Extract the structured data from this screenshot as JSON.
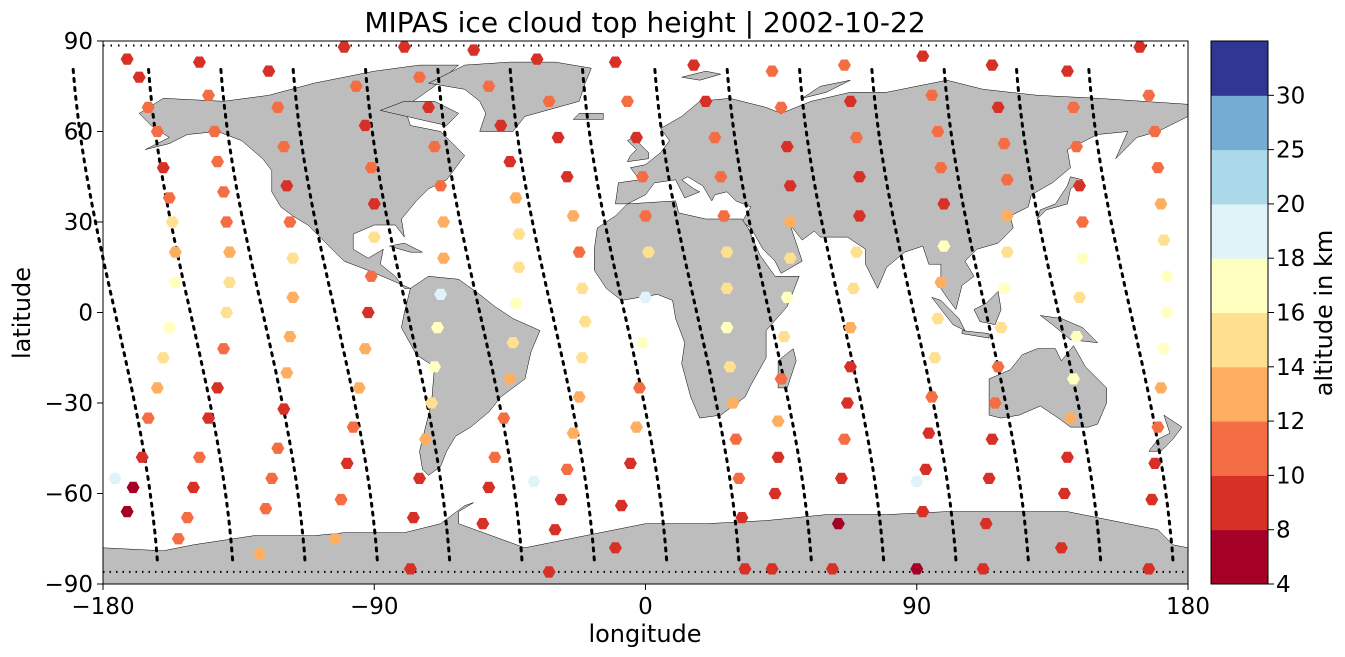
{
  "chart_data": {
    "type": "scatter",
    "title": "MIPAS ice cloud top height | 2002-10-22",
    "xlabel": "longitude",
    "ylabel": "latitude",
    "xlim": [
      -180,
      180
    ],
    "ylim": [
      -90,
      90
    ],
    "xticks": [
      -180,
      -90,
      0,
      90,
      180
    ],
    "yticks": [
      -90,
      -60,
      -30,
      0,
      30,
      60,
      90
    ],
    "xtick_labels": [
      "−180",
      "−90",
      "0",
      "90",
      "180"
    ],
    "ytick_labels": [
      "−90",
      "−60",
      "−30",
      "0",
      "30",
      "60",
      "90"
    ],
    "background_map": "world coastlines, land in grey",
    "land_color": "#bdbdbd",
    "colorbar": {
      "label": "altitude in km",
      "placement": "right",
      "boundaries": [
        4,
        8,
        10,
        12,
        14,
        16,
        18,
        20,
        25,
        30
      ],
      "tick_labels": [
        "4",
        "8",
        "10",
        "12",
        "14",
        "16",
        "18",
        "20",
        "25",
        "30"
      ],
      "colors": [
        "#a50026",
        "#d73027",
        "#f46d43",
        "#fdae61",
        "#fee090",
        "#ffffbf",
        "#e0f3f8",
        "#abd9e9",
        "#74add1",
        "#313695"
      ]
    },
    "orbit_tracks": {
      "style": "black dotted",
      "longitudes_at_equator": [
        -176,
        -151,
        -127,
        -103,
        -79,
        -55,
        -31,
        -7,
        17,
        41,
        65,
        89,
        113,
        137,
        161
      ]
    },
    "points": [
      [
        -172,
        84,
        9
      ],
      [
        -168,
        78,
        9
      ],
      [
        -165,
        68,
        11
      ],
      [
        -162,
        60,
        10
      ],
      [
        -160,
        48,
        9
      ],
      [
        -158,
        38,
        11
      ],
      [
        -157,
        30,
        14
      ],
      [
        -156,
        20,
        13
      ],
      [
        -156,
        10,
        17
      ],
      [
        -158,
        -5,
        17
      ],
      [
        -160,
        -15,
        14
      ],
      [
        -162,
        -25,
        12
      ],
      [
        -165,
        -35,
        11
      ],
      [
        -167,
        -48,
        9
      ],
      [
        -170,
        -58,
        7
      ],
      [
        -172,
        -66,
        7
      ],
      [
        -176,
        -55,
        19
      ],
      [
        -148,
        83,
        9
      ],
      [
        -145,
        72,
        10
      ],
      [
        -143,
        60,
        11
      ],
      [
        -142,
        50,
        10
      ],
      [
        -140,
        40,
        11
      ],
      [
        -139,
        30,
        10
      ],
      [
        -138,
        20,
        13
      ],
      [
        -138,
        10,
        14
      ],
      [
        -139,
        0,
        14
      ],
      [
        -140,
        -12,
        10
      ],
      [
        -142,
        -25,
        9
      ],
      [
        -145,
        -35,
        9
      ],
      [
        -148,
        -48,
        10
      ],
      [
        -150,
        -58,
        8
      ],
      [
        -152,
        -68,
        11
      ],
      [
        -155,
        -75,
        11
      ],
      [
        -125,
        80,
        9
      ],
      [
        -122,
        68,
        10
      ],
      [
        -120,
        55,
        11
      ],
      [
        -119,
        42,
        9
      ],
      [
        -118,
        30,
        11
      ],
      [
        -117,
        18,
        14
      ],
      [
        -117,
        5,
        12
      ],
      [
        -118,
        -8,
        13
      ],
      [
        -119,
        -20,
        12
      ],
      [
        -120,
        -32,
        9
      ],
      [
        -122,
        -45,
        10
      ],
      [
        -124,
        -55,
        11
      ],
      [
        -126,
        -65,
        10
      ],
      [
        -128,
        -80,
        12
      ],
      [
        -100,
        88,
        9
      ],
      [
        -96,
        75,
        10
      ],
      [
        -93,
        62,
        9
      ],
      [
        -91,
        48,
        10
      ],
      [
        -90,
        36,
        9
      ],
      [
        -90,
        25,
        14
      ],
      [
        -91,
        12,
        11
      ],
      [
        -92,
        0,
        9
      ],
      [
        -93,
        -12,
        13
      ],
      [
        -95,
        -25,
        12
      ],
      [
        -97,
        -38,
        11
      ],
      [
        -99,
        -50,
        9
      ],
      [
        -101,
        -62,
        11
      ],
      [
        -103,
        -75,
        12
      ],
      [
        -80,
        88,
        9
      ],
      [
        -75,
        78,
        10
      ],
      [
        -72,
        68,
        9
      ],
      [
        -70,
        55,
        10
      ],
      [
        -68,
        42,
        11
      ],
      [
        -67,
        30,
        13
      ],
      [
        -67,
        18,
        12
      ],
      [
        -68,
        6,
        18
      ],
      [
        -69,
        -5,
        17
      ],
      [
        -70,
        -18,
        16
      ],
      [
        -71,
        -30,
        15
      ],
      [
        -73,
        -42,
        12
      ],
      [
        -75,
        -55,
        8
      ],
      [
        -77,
        -68,
        9
      ],
      [
        -78,
        -85,
        9
      ],
      [
        -57,
        87,
        9
      ],
      [
        -52,
        75,
        10
      ],
      [
        -48,
        62,
        9
      ],
      [
        -45,
        50,
        9
      ],
      [
        -43,
        38,
        12
      ],
      [
        -42,
        26,
        14
      ],
      [
        -42,
        15,
        15
      ],
      [
        -43,
        3,
        16
      ],
      [
        -44,
        -10,
        14
      ],
      [
        -45,
        -22,
        12
      ],
      [
        -47,
        -35,
        10
      ],
      [
        -50,
        -48,
        11
      ],
      [
        -52,
        -58,
        9
      ],
      [
        -54,
        -70,
        9
      ],
      [
        -36,
        84,
        9
      ],
      [
        -32,
        70,
        10
      ],
      [
        -29,
        58,
        9
      ],
      [
        -26,
        45,
        9
      ],
      [
        -24,
        32,
        12
      ],
      [
        -22,
        20,
        11
      ],
      [
        -21,
        8,
        14
      ],
      [
        -20,
        -3,
        14
      ],
      [
        -21,
        -15,
        15
      ],
      [
        -22,
        -28,
        13
      ],
      [
        -24,
        -40,
        12
      ],
      [
        -26,
        -52,
        11
      ],
      [
        -28,
        -62,
        9
      ],
      [
        -30,
        -72,
        9
      ],
      [
        -32,
        -86,
        9
      ],
      [
        -37,
        -56,
        19
      ],
      [
        -10,
        83,
        9
      ],
      [
        -6,
        70,
        10
      ],
      [
        -3,
        58,
        9
      ],
      [
        -1,
        45,
        10
      ],
      [
        0,
        32,
        11
      ],
      [
        1,
        20,
        15
      ],
      [
        0,
        5,
        18
      ],
      [
        -1,
        -10,
        16
      ],
      [
        -2,
        -25,
        11
      ],
      [
        -3,
        -38,
        12
      ],
      [
        -5,
        -50,
        9
      ],
      [
        -8,
        -64,
        8
      ],
      [
        -10,
        -78,
        8
      ],
      [
        16,
        82,
        9
      ],
      [
        20,
        70,
        9
      ],
      [
        23,
        58,
        10
      ],
      [
        25,
        45,
        10
      ],
      [
        26,
        32,
        11
      ],
      [
        27,
        20,
        14
      ],
      [
        27,
        8,
        15
      ],
      [
        27,
        -5,
        16
      ],
      [
        28,
        -18,
        14
      ],
      [
        29,
        -30,
        13
      ],
      [
        30,
        -42,
        10
      ],
      [
        31,
        -55,
        11
      ],
      [
        32,
        -68,
        9
      ],
      [
        33,
        -85,
        8
      ],
      [
        42,
        80,
        10
      ],
      [
        45,
        68,
        10
      ],
      [
        47,
        55,
        9
      ],
      [
        48,
        42,
        9
      ],
      [
        48,
        30,
        13
      ],
      [
        48,
        18,
        15
      ],
      [
        47,
        5,
        17
      ],
      [
        46,
        -8,
        14
      ],
      [
        45,
        -22,
        11
      ],
      [
        44,
        -36,
        12
      ],
      [
        44,
        -48,
        9
      ],
      [
        43,
        -60,
        9
      ],
      [
        42,
        -85,
        9
      ],
      [
        66,
        82,
        10
      ],
      [
        68,
        70,
        9
      ],
      [
        70,
        58,
        10
      ],
      [
        71,
        45,
        9
      ],
      [
        71,
        32,
        9
      ],
      [
        70,
        20,
        14
      ],
      [
        69,
        8,
        14
      ],
      [
        68,
        -5,
        13
      ],
      [
        68,
        -18,
        9
      ],
      [
        67,
        -30,
        9
      ],
      [
        66,
        -42,
        10
      ],
      [
        65,
        -55,
        8
      ],
      [
        64,
        -70,
        7
      ],
      [
        62,
        -85,
        8
      ],
      [
        92,
        85,
        9
      ],
      [
        95,
        72,
        10
      ],
      [
        97,
        60,
        11
      ],
      [
        98,
        48,
        10
      ],
      [
        99,
        36,
        9
      ],
      [
        99,
        22,
        17
      ],
      [
        98,
        10,
        13
      ],
      [
        97,
        -2,
        14
      ],
      [
        96,
        -15,
        15
      ],
      [
        95,
        -28,
        11
      ],
      [
        94,
        -40,
        9
      ],
      [
        93,
        -52,
        9
      ],
      [
        92,
        -66,
        8
      ],
      [
        90,
        -85,
        7
      ],
      [
        90,
        -56,
        19
      ],
      [
        115,
        82,
        9
      ],
      [
        117,
        68,
        9
      ],
      [
        119,
        56,
        11
      ],
      [
        120,
        44,
        10
      ],
      [
        120,
        32,
        12
      ],
      [
        120,
        20,
        15
      ],
      [
        119,
        8,
        16
      ],
      [
        118,
        -5,
        15
      ],
      [
        117,
        -18,
        11
      ],
      [
        116,
        -30,
        10
      ],
      [
        115,
        -42,
        9
      ],
      [
        114,
        -55,
        8
      ],
      [
        113,
        -70,
        8
      ],
      [
        112,
        -85,
        9
      ],
      [
        140,
        80,
        9
      ],
      [
        142,
        68,
        10
      ],
      [
        143,
        55,
        11
      ],
      [
        144,
        42,
        9
      ],
      [
        145,
        30,
        11
      ],
      [
        145,
        18,
        17
      ],
      [
        144,
        5,
        15
      ],
      [
        143,
        -8,
        17
      ],
      [
        142,
        -22,
        16
      ],
      [
        141,
        -35,
        12
      ],
      [
        140,
        -48,
        9
      ],
      [
        139,
        -60,
        9
      ],
      [
        138,
        -78,
        9
      ],
      [
        164,
        88,
        9
      ],
      [
        167,
        72,
        10
      ],
      [
        169,
        60,
        11
      ],
      [
        170,
        48,
        10
      ],
      [
        171,
        36,
        12
      ],
      [
        172,
        24,
        15
      ],
      [
        173,
        12,
        17
      ],
      [
        173,
        0,
        16
      ],
      [
        172,
        -12,
        17
      ],
      [
        171,
        -25,
        13
      ],
      [
        170,
        -38,
        11
      ],
      [
        169,
        -50,
        9
      ],
      [
        168,
        -62,
        8
      ],
      [
        167,
        -85,
        9
      ]
    ]
  }
}
